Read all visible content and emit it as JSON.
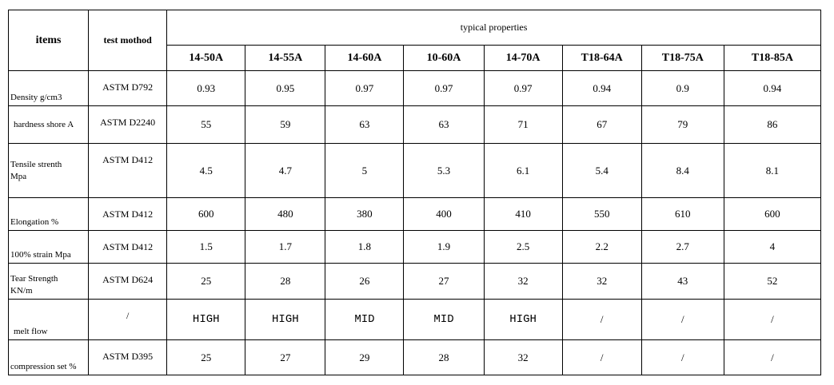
{
  "table": {
    "header": {
      "items": "items",
      "test_method": "test mothod",
      "typical": "typical properties",
      "grades": [
        "14-50A",
        "14-55A",
        "14-60A",
        "10-60A",
        "14-70A",
        "T18-64A",
        "T18-75A",
        "T18-85A"
      ]
    },
    "rows": [
      {
        "label": "Density  g/cm3",
        "method": "ASTM D792",
        "values": [
          "0.93",
          "0.95",
          "0.97",
          "0.97",
          "0.97",
          "0.94",
          "0.9",
          "0.94"
        ]
      },
      {
        "label": "hardness  shore A",
        "method": "ASTM D2240",
        "values": [
          "55",
          "59",
          "63",
          "63",
          "71",
          "67",
          "79",
          "86"
        ]
      },
      {
        "label": "Tensile strenth\nMpa",
        "method": "ASTM D412",
        "values": [
          "4.5",
          "4.7",
          "5",
          "5.3",
          "6.1",
          "5.4",
          "8.4",
          "8.1"
        ]
      },
      {
        "label": "Elongation  %",
        "method": "ASTM D412",
        "values": [
          "600",
          "480",
          "380",
          "400",
          "410",
          "550",
          "610",
          "600"
        ]
      },
      {
        "label": "100% strain  Mpa",
        "method": "ASTM D412",
        "values": [
          "1.5",
          "1.7",
          "1.8",
          "1.9",
          "2.5",
          "2.2",
          "2.7",
          "4"
        ]
      },
      {
        "label": "Tear Strength\nKN/m",
        "method": "ASTM D624",
        "values": [
          "25",
          "28",
          "26",
          "27",
          "32",
          "32",
          "43",
          "52"
        ]
      },
      {
        "label": "melt flow",
        "method": "/",
        "values": [
          "HIGH",
          "HIGH",
          "MID",
          "MID",
          "HIGH",
          "/",
          "/",
          "/"
        ]
      },
      {
        "label": "compression set  %",
        "method": "ASTM D395",
        "values": [
          "25",
          "27",
          "29",
          "28",
          "32",
          "/",
          "/",
          "/"
        ]
      }
    ]
  }
}
